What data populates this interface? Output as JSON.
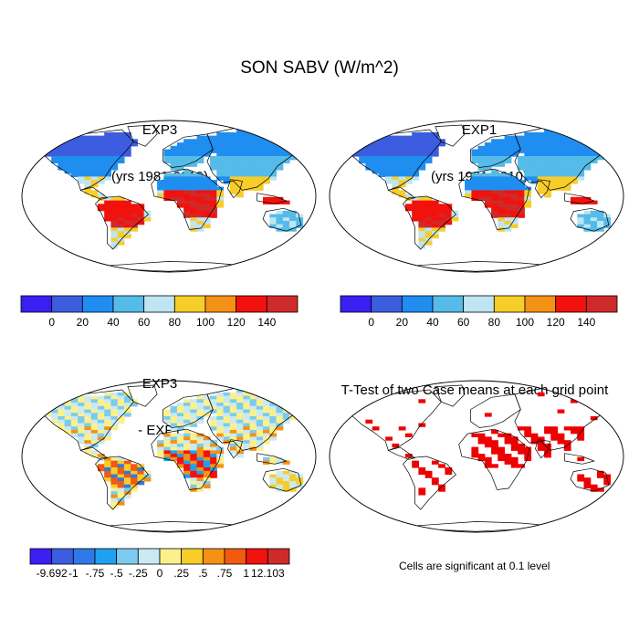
{
  "title": "SON SABV (W/m^2)",
  "panels": [
    {
      "title_line1": "EXP3",
      "title_line2": "(yrs 1981-2010)"
    },
    {
      "title_line1": "EXP1",
      "title_line2": "(yrs 1981-2010)"
    },
    {
      "title_line1": "EXP3",
      "title_line2": "- EXP1"
    },
    {
      "title_line1": "T-Test of two Case means at each grid point",
      "title_line2": ""
    }
  ],
  "colorbar_abs": {
    "labels": [
      "0",
      "20",
      "40",
      "60",
      "80",
      "100",
      "120",
      "140"
    ],
    "colors": [
      "#3a1ef2",
      "#3c5de0",
      "#1f8ef0",
      "#55bbe8",
      "#bfe4f2",
      "#f7cd2a",
      "#f59114",
      "#f2120d",
      "#cf2a2a"
    ]
  },
  "colorbar_diff": {
    "labels": [
      "-9.692",
      "-1",
      "-.75",
      "-.5",
      "-.25",
      "0",
      ".25",
      ".5",
      ".75",
      "1",
      "12.103"
    ],
    "colors": [
      "#3a1ef2",
      "#3c5de0",
      "#2f78e8",
      "#1fa0f0",
      "#7ccbee",
      "#c9e9f4",
      "#fbf08c",
      "#f7cd2a",
      "#f59114",
      "#f25a10",
      "#f2120d",
      "#cf2a2a"
    ]
  },
  "significance_note": "Cells are significant at 0.1 level",
  "significance_color": "#ee0000"
}
